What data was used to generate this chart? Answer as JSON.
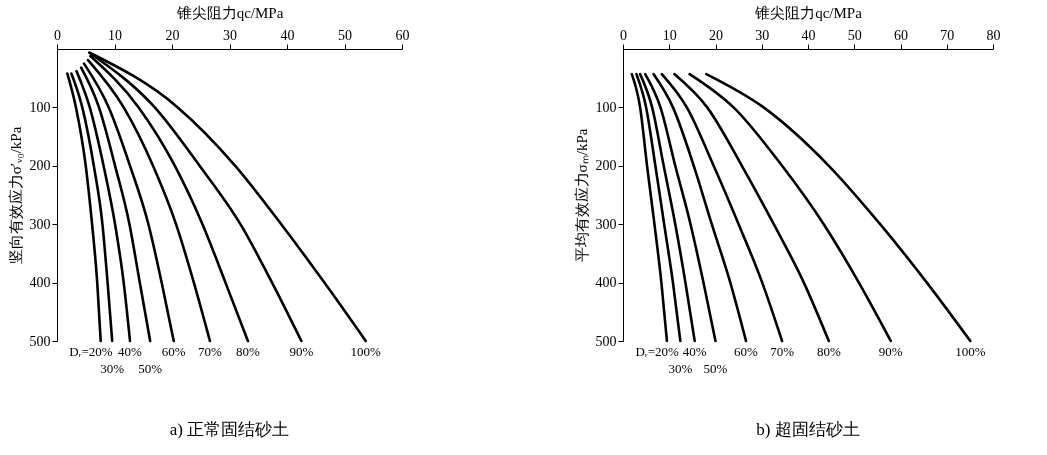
{
  "chart_data": [
    {
      "type": "line",
      "title": "a) 正常固结砂土",
      "xlabel": "锥尖阻力qc/MPa",
      "ylabel": "竖向有效应力σ′ᵥ₀/kPa",
      "xlim": [
        0,
        60
      ],
      "xticks": [
        0,
        10,
        20,
        30,
        40,
        50,
        60
      ],
      "ylim": [
        500,
        0
      ],
      "yticks": [
        100,
        200,
        300,
        400,
        500
      ],
      "grid": false,
      "legend": false,
      "line_style": "solid",
      "marker": "none",
      "series": [
        {
          "name": "Dᵣ=20%",
          "color": "#000000",
          "x": [
            1.8,
            3.3,
            5.0,
            6.1,
            7.0,
            7.6
          ],
          "values": [
            42,
            100,
            200,
            300,
            400,
            500
          ]
        },
        {
          "name": "30%",
          "color": "#000000",
          "x": [
            2.5,
            4.4,
            6.4,
            7.9,
            8.8,
            9.6
          ],
          "values": [
            42,
            100,
            200,
            300,
            400,
            500
          ]
        },
        {
          "name": "40%",
          "color": "#000000",
          "x": [
            3.4,
            5.7,
            8.1,
            10.1,
            11.6,
            12.7
          ],
          "values": [
            38,
            100,
            200,
            300,
            400,
            500
          ]
        },
        {
          "name": "50%",
          "color": "#000000",
          "x": [
            4.2,
            7.3,
            10.1,
            12.6,
            14.4,
            16.2
          ],
          "values": [
            32,
            100,
            200,
            300,
            400,
            500
          ]
        },
        {
          "name": "60%",
          "color": "#000000",
          "x": [
            4.7,
            9.0,
            12.7,
            15.9,
            18.2,
            20.3
          ],
          "values": [
            25,
            100,
            200,
            300,
            400,
            500
          ]
        },
        {
          "name": "70%",
          "color": "#000000",
          "x": [
            5.4,
            11.6,
            16.7,
            20.7,
            23.8,
            26.6
          ],
          "values": [
            19,
            100,
            200,
            300,
            400,
            500
          ]
        },
        {
          "name": "80%",
          "color": "#000000",
          "x": [
            5.8,
            14.2,
            20.5,
            25.3,
            29.3,
            33.2
          ],
          "values": [
            12,
            100,
            200,
            300,
            400,
            500
          ]
        },
        {
          "name": "90%",
          "color": "#000000",
          "x": [
            6.0,
            17.0,
            24.8,
            31.9,
            37.4,
            42.5
          ],
          "values": [
            9,
            100,
            200,
            300,
            400,
            500
          ]
        },
        {
          "name": "100%",
          "color": "#000000",
          "x": [
            5.6,
            21.0,
            31.0,
            39.0,
            46.5,
            53.7
          ],
          "values": [
            6,
            100,
            200,
            300,
            400,
            500
          ]
        }
      ]
    },
    {
      "type": "line",
      "title": "b) 超固结砂土",
      "xlabel": "锥尖阻力qc/MPa",
      "ylabel": "平均有效应力σₘ/kPa",
      "xlim": [
        0,
        80
      ],
      "xticks": [
        0,
        10,
        20,
        30,
        40,
        50,
        60,
        70,
        80
      ],
      "ylim": [
        500,
        0
      ],
      "yticks": [
        100,
        200,
        300,
        400,
        500
      ],
      "grid": false,
      "legend": false,
      "line_style": "solid",
      "marker": "none",
      "series": [
        {
          "name": "Dᵣ=20%",
          "color": "#000000",
          "x": [
            1.9,
            3.7,
            5.2,
            6.8,
            8.3,
            9.5
          ],
          "values": [
            43,
            100,
            200,
            300,
            400,
            500
          ]
        },
        {
          "name": "30%",
          "color": "#000000",
          "x": [
            2.9,
            5.0,
            7.0,
            8.9,
            10.8,
            12.4
          ],
          "values": [
            43,
            100,
            200,
            300,
            400,
            500
          ]
        },
        {
          "name": "40%",
          "color": "#000000",
          "x": [
            3.7,
            6.3,
            8.8,
            11.3,
            13.5,
            15.5
          ],
          "values": [
            43,
            100,
            200,
            300,
            400,
            500
          ]
        },
        {
          "name": "50%",
          "color": "#000000",
          "x": [
            4.8,
            8.1,
            11.3,
            14.6,
            17.4,
            20.0
          ],
          "values": [
            43,
            100,
            200,
            300,
            400,
            500
          ]
        },
        {
          "name": "60%",
          "color": "#000000",
          "x": [
            6.6,
            10.8,
            15.3,
            19.2,
            23.2,
            26.6
          ],
          "values": [
            43,
            100,
            200,
            300,
            400,
            500
          ]
        },
        {
          "name": "70%",
          "color": "#000000",
          "x": [
            8.4,
            13.8,
            19.6,
            25.0,
            30.1,
            34.4
          ],
          "values": [
            43,
            100,
            200,
            300,
            400,
            500
          ]
        },
        {
          "name": "80%",
          "color": "#000000",
          "x": [
            11.1,
            18.2,
            25.7,
            32.6,
            39.1,
            44.5
          ],
          "values": [
            43,
            100,
            200,
            300,
            400,
            500
          ]
        },
        {
          "name": "90%",
          "color": "#000000",
          "x": [
            14.4,
            23.9,
            34.4,
            43.4,
            51.0,
            57.9
          ],
          "values": [
            43,
            100,
            200,
            300,
            400,
            500
          ]
        },
        {
          "name": "100%",
          "color": "#000000",
          "x": [
            18.0,
            30.4,
            44.5,
            55.6,
            65.7,
            75.1
          ],
          "values": [
            43,
            100,
            200,
            300,
            400,
            500
          ]
        }
      ]
    }
  ]
}
